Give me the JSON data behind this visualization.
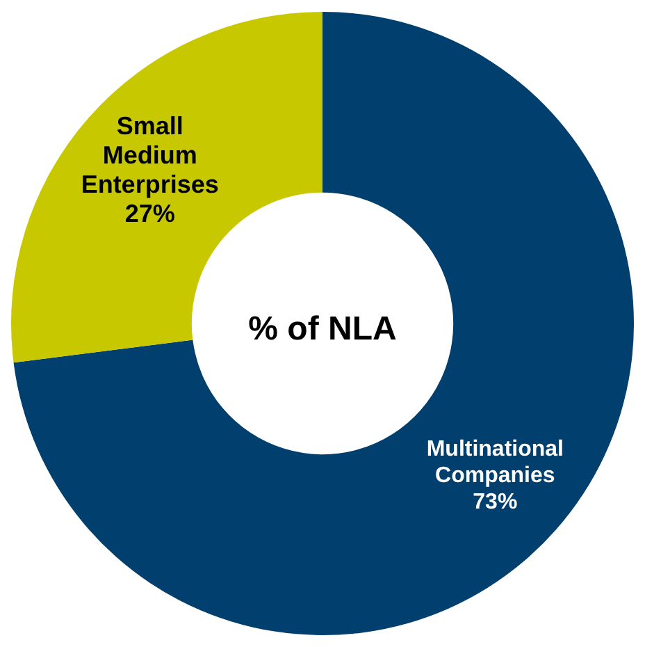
{
  "chart_data": {
    "type": "donut",
    "title": "% of NLA",
    "categories": [
      "Multinational Companies",
      "Small Medium Enterprises"
    ],
    "values": [
      73,
      27
    ],
    "colors": [
      "#003f6e",
      "#c8c800"
    ],
    "value_labels": [
      "73%",
      "27%"
    ],
    "legend": false
  }
}
